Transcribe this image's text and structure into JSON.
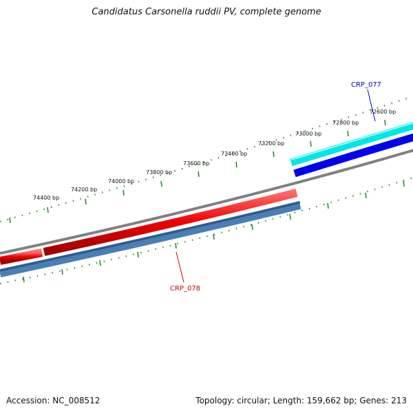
{
  "title": "Candidatus Carsonella ruddii PV, complete genome",
  "footer": {
    "accession": "Accession: NC_008512",
    "summary": "Topology: circular; Length: 159,662 bp; Genes: 213"
  },
  "scale_labels": [
    "74400 bp",
    "74200 bp",
    "74000 bp",
    "73800 bp",
    "73600 bp",
    "73400 bp",
    "73200 bp",
    "73000 bp",
    "72800 bp",
    "72600 bp"
  ],
  "genes": [
    {
      "name": "CRP_077",
      "color": "#0000bb"
    },
    {
      "name": "CRP_078",
      "color": "#cc0000"
    }
  ],
  "colors": {
    "backbone": "#808080",
    "tick": "#2a8a2a",
    "cds_red": "#ee0000",
    "cds_blue": "#0000ee",
    "cds_cyan": "#00e5e5",
    "cds_steel": "#4a7fb5"
  }
}
